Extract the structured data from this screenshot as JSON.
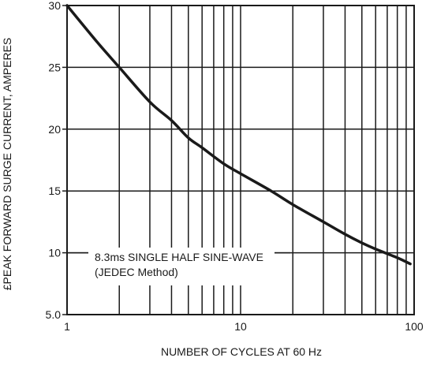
{
  "chart_data": {
    "type": "line",
    "title": "",
    "xlabel": "NUMBER OF CYCLES AT 60 Hz",
    "ylabel": "£PEAK  FORWARD SURGE CURRENT, AMPERES",
    "x_scale": "log",
    "xlim": [
      1,
      100
    ],
    "ylim": [
      5,
      30
    ],
    "grid": true,
    "x_ticks": [
      {
        "value": 1,
        "label": "1"
      },
      {
        "value": 10,
        "label": "10"
      },
      {
        "value": 100,
        "label": "100"
      }
    ],
    "y_ticks": [
      {
        "value": 5,
        "label": "5.0"
      },
      {
        "value": 10,
        "label": "10"
      },
      {
        "value": 15,
        "label": "15"
      },
      {
        "value": 20,
        "label": "20"
      },
      {
        "value": 25,
        "label": "25"
      },
      {
        "value": 30,
        "label": "30"
      }
    ],
    "annotation": [
      "8.3ms SINGLE HALF SINE-WAVE",
      "(JEDEC Method)"
    ],
    "series": [
      {
        "x": [
          1,
          1.5,
          2,
          3,
          4,
          5,
          6,
          8,
          10,
          15,
          20,
          30,
          40,
          50,
          60,
          80,
          95
        ],
        "y": [
          30,
          27,
          25,
          22.2,
          20.7,
          19.3,
          18.5,
          17.2,
          16.4,
          15,
          13.9,
          12.5,
          11.5,
          10.8,
          10.3,
          9.6,
          9.1
        ]
      }
    ],
    "colors": {
      "line": "#1a1a1a",
      "grid": "#1a1a1a",
      "background": "#ffffff"
    }
  }
}
